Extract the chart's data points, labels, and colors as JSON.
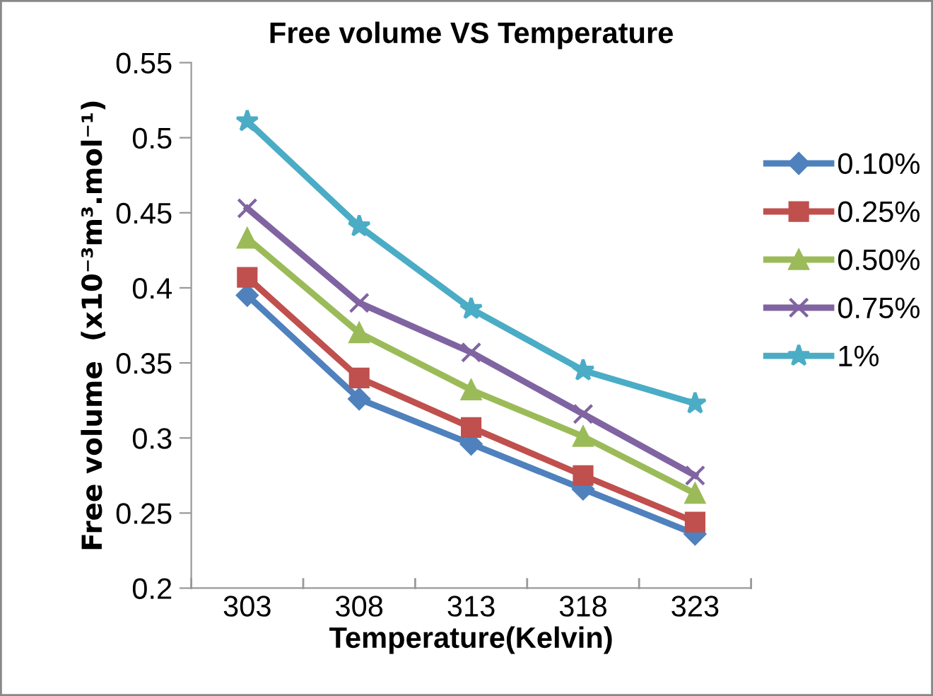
{
  "chart_data": {
    "type": "line",
    "title": "Free volume VS Temperature",
    "xlabel": "Temperature(Kelvin)",
    "ylabel": "Free volume  (x10⁻³m³.mol⁻¹)",
    "categories": [
      "303",
      "308",
      "313",
      "318",
      "323"
    ],
    "series": [
      {
        "name": "0.10%",
        "color": "#4f81bd",
        "marker": "diamond",
        "values": [
          0.395,
          0.326,
          0.296,
          0.266,
          0.236
        ]
      },
      {
        "name": "0.25%",
        "color": "#c0504d",
        "marker": "square",
        "values": [
          0.407,
          0.34,
          0.307,
          0.275,
          0.244
        ]
      },
      {
        "name": "0.50%",
        "color": "#9bbb59",
        "marker": "triangle",
        "values": [
          0.433,
          0.37,
          0.332,
          0.301,
          0.263
        ]
      },
      {
        "name": "0.75%",
        "color": "#8064a2",
        "marker": "cross",
        "values": [
          0.453,
          0.39,
          0.357,
          0.316,
          0.275
        ]
      },
      {
        "name": "1%",
        "color": "#4bacc6",
        "marker": "star",
        "values": [
          0.511,
          0.441,
          0.386,
          0.345,
          0.323
        ]
      }
    ],
    "ylim": [
      0.2,
      0.55
    ],
    "yticks": [
      0.2,
      0.25,
      0.3,
      0.35,
      0.4,
      0.45,
      0.5,
      0.55
    ],
    "grid": false,
    "legend": "right",
    "line_style": "solid"
  }
}
